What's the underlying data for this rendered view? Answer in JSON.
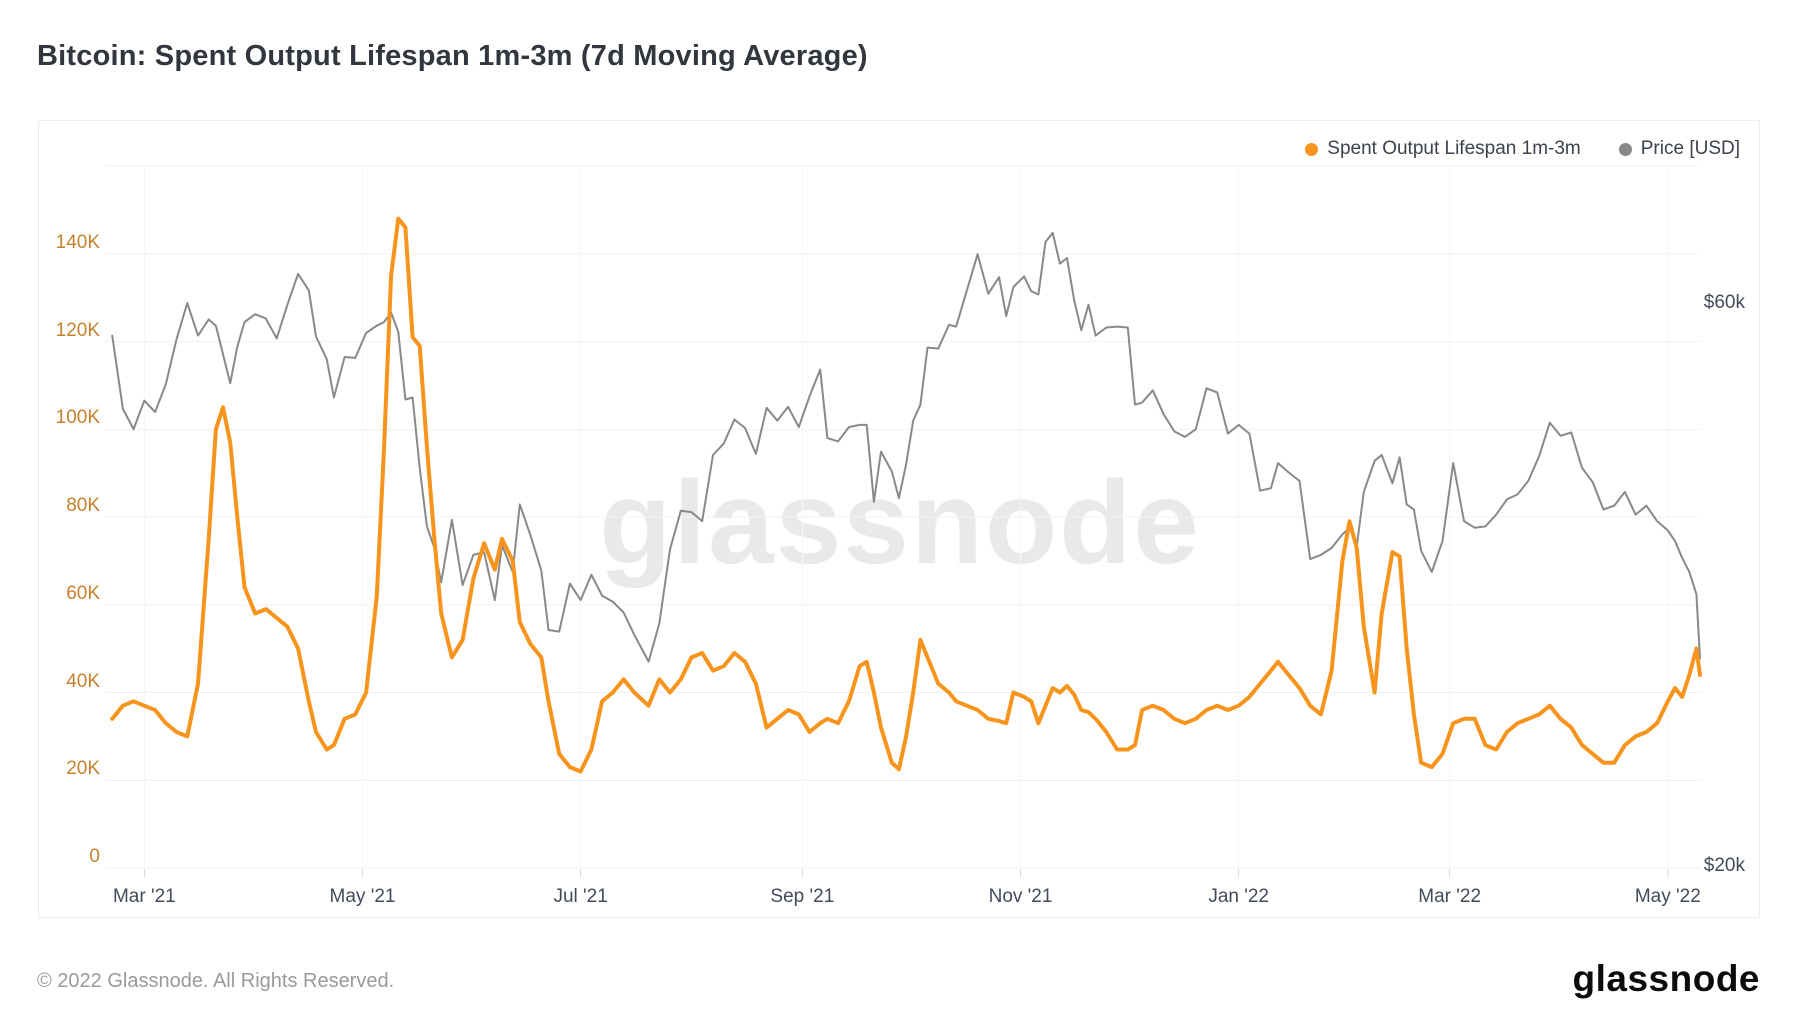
{
  "page": {
    "title": "Bitcoin: Spent Output Lifespan 1m-3m (7d Moving Average)",
    "watermark": "glassnode",
    "footer_copyright": "© 2022 Glassnode. All Rights Reserved.",
    "footer_logo": "glassnode"
  },
  "colors": {
    "series_spent_output": "#f7941d",
    "series_price": "#898989",
    "left_axis_text": "#c5812d",
    "right_axis_text": "#434b57",
    "x_axis_text": "#434b57",
    "gridline": "#f2f2f2",
    "vertical_gridline": "#f7f7f7",
    "tick_mark": "#d9d9d9",
    "watermark": "#e9e9e9",
    "card_border": "#ececec",
    "title_text": "#32373d",
    "footer_text": "#9a9a9a",
    "logo_text": "#0c0c0c"
  },
  "legend": {
    "items": [
      {
        "label": "Spent Output Lifespan 1m-3m",
        "color": "#f7941d"
      },
      {
        "label": "Price [USD]",
        "color": "#898989"
      }
    ]
  },
  "chart_data": {
    "type": "line",
    "title": "Bitcoin: Spent Output Lifespan 1m-3m (7d Moving Average)",
    "x_domain": [
      "2021-02-18",
      "2022-05-10"
    ],
    "left_axis": {
      "name": "Spent Output Lifespan 1m-3m",
      "unit": "thousands",
      "scale": "linear",
      "ylim": [
        0,
        160
      ],
      "ticks": [
        {
          "value": 0,
          "label": "0"
        },
        {
          "value": 20,
          "label": "20K"
        },
        {
          "value": 40,
          "label": "40K"
        },
        {
          "value": 60,
          "label": "60K"
        },
        {
          "value": 80,
          "label": "80K"
        },
        {
          "value": 100,
          "label": "100K"
        },
        {
          "value": 120,
          "label": "120K"
        },
        {
          "value": 140,
          "label": "140K"
        }
      ]
    },
    "right_axis": {
      "name": "Price [USD]",
      "unit": "thousand USD",
      "scale": "log",
      "ticks": [
        {
          "value": 60,
          "label": "$60k"
        },
        {
          "value": 20,
          "label": "$20k"
        }
      ]
    },
    "x_ticks": [
      {
        "date": "2021-03-01",
        "label": "Mar '21"
      },
      {
        "date": "2021-05-01",
        "label": "May '21"
      },
      {
        "date": "2021-07-01",
        "label": "Jul '21"
      },
      {
        "date": "2021-09-01",
        "label": "Sep '21"
      },
      {
        "date": "2021-11-01",
        "label": "Nov '21"
      },
      {
        "date": "2022-01-01",
        "label": "Jan '22"
      },
      {
        "date": "2022-03-01",
        "label": "Mar '22"
      },
      {
        "date": "2022-05-01",
        "label": "May '22"
      }
    ],
    "columns": [
      "date",
      "spent_output_lifespan_1m3m_thousands",
      "price_usd_thousands"
    ],
    "rows": [
      [
        "2021-02-20",
        34,
        56.3
      ],
      [
        "2021-02-23",
        37,
        48.8
      ],
      [
        "2021-02-26",
        38,
        46.9
      ],
      [
        "2021-03-01",
        37,
        49.6
      ],
      [
        "2021-03-04",
        36,
        48.5
      ],
      [
        "2021-03-07",
        33,
        51.2
      ],
      [
        "2021-03-10",
        31,
        55.9
      ],
      [
        "2021-03-13",
        30,
        60.0
      ],
      [
        "2021-03-16",
        42,
        56.3
      ],
      [
        "2021-03-19",
        75,
        58.1
      ],
      [
        "2021-03-21",
        100,
        57.4
      ],
      [
        "2021-03-23",
        105,
        54.3
      ],
      [
        "2021-03-25",
        97,
        51.3
      ],
      [
        "2021-03-27",
        80,
        55.1
      ],
      [
        "2021-03-29",
        64,
        57.8
      ],
      [
        "2021-04-01",
        58,
        58.7
      ],
      [
        "2021-04-04",
        59,
        58.2
      ],
      [
        "2021-04-07",
        57,
        56.0
      ],
      [
        "2021-04-10",
        55,
        59.8
      ],
      [
        "2021-04-13",
        50,
        63.5
      ],
      [
        "2021-04-16",
        38,
        61.5
      ],
      [
        "2021-04-18",
        31,
        56.2
      ],
      [
        "2021-04-21",
        27,
        53.8
      ],
      [
        "2021-04-23",
        28,
        49.9
      ],
      [
        "2021-04-26",
        34,
        54.0
      ],
      [
        "2021-04-29",
        35,
        53.9
      ],
      [
        "2021-05-02",
        40,
        56.6
      ],
      [
        "2021-05-05",
        62,
        57.4
      ],
      [
        "2021-05-07",
        95,
        57.8
      ],
      [
        "2021-05-09",
        135,
        58.9
      ],
      [
        "2021-05-11",
        148,
        56.7
      ],
      [
        "2021-05-13",
        146,
        49.7
      ],
      [
        "2021-05-15",
        121,
        49.9
      ],
      [
        "2021-05-17",
        119,
        43.5
      ],
      [
        "2021-05-19",
        96,
        38.8
      ],
      [
        "2021-05-21",
        76,
        37.3
      ],
      [
        "2021-05-23",
        58,
        34.8
      ],
      [
        "2021-05-26",
        48,
        39.3
      ],
      [
        "2021-05-29",
        52,
        34.6
      ],
      [
        "2021-06-01",
        66,
        36.7
      ],
      [
        "2021-06-04",
        74,
        36.9
      ],
      [
        "2021-06-07",
        68,
        33.6
      ],
      [
        "2021-06-09",
        75,
        37.4
      ],
      [
        "2021-06-12",
        70,
        35.5
      ],
      [
        "2021-06-14",
        56,
        40.5
      ],
      [
        "2021-06-17",
        51,
        38.1
      ],
      [
        "2021-06-20",
        48,
        35.6
      ],
      [
        "2021-06-22",
        38,
        31.7
      ],
      [
        "2021-06-25",
        26,
        31.6
      ],
      [
        "2021-06-28",
        23,
        34.7
      ],
      [
        "2021-07-01",
        22,
        33.6
      ],
      [
        "2021-07-04",
        27,
        35.3
      ],
      [
        "2021-07-07",
        38,
        33.9
      ],
      [
        "2021-07-10",
        40,
        33.5
      ],
      [
        "2021-07-13",
        43,
        32.8
      ],
      [
        "2021-07-16",
        40,
        31.4
      ],
      [
        "2021-07-20",
        37,
        29.8
      ],
      [
        "2021-07-23",
        43,
        32.1
      ],
      [
        "2021-07-26",
        40,
        37.1
      ],
      [
        "2021-07-29",
        43,
        40.0
      ],
      [
        "2021-08-01",
        48,
        39.9
      ],
      [
        "2021-08-04",
        49,
        39.2
      ],
      [
        "2021-08-07",
        45,
        44.6
      ],
      [
        "2021-08-10",
        46,
        45.6
      ],
      [
        "2021-08-13",
        49,
        47.8
      ],
      [
        "2021-08-16",
        47,
        47.0
      ],
      [
        "2021-08-19",
        42,
        44.7
      ],
      [
        "2021-08-22",
        32,
        48.9
      ],
      [
        "2021-08-25",
        34,
        47.7
      ],
      [
        "2021-08-28",
        36,
        49.0
      ],
      [
        "2021-08-31",
        35,
        47.1
      ],
      [
        "2021-09-03",
        31,
        50.0
      ],
      [
        "2021-09-06",
        33,
        52.7
      ],
      [
        "2021-09-08",
        34,
        46.1
      ],
      [
        "2021-09-11",
        33,
        45.8
      ],
      [
        "2021-09-14",
        38,
        47.1
      ],
      [
        "2021-09-17",
        46,
        47.3
      ],
      [
        "2021-09-19",
        47,
        47.3
      ],
      [
        "2021-09-21",
        40,
        40.7
      ],
      [
        "2021-09-23",
        32,
        44.9
      ],
      [
        "2021-09-26",
        24,
        43.2
      ],
      [
        "2021-09-28",
        22.5,
        41.0
      ],
      [
        "2021-09-30",
        30,
        43.8
      ],
      [
        "2021-10-02",
        40,
        47.7
      ],
      [
        "2021-10-04",
        52,
        49.2
      ],
      [
        "2021-10-06",
        48,
        55.0
      ],
      [
        "2021-10-09",
        42,
        54.9
      ],
      [
        "2021-10-12",
        40,
        57.5
      ],
      [
        "2021-10-14",
        38,
        57.3
      ],
      [
        "2021-10-17",
        37,
        61.5
      ],
      [
        "2021-10-20",
        36,
        66.0
      ],
      [
        "2021-10-23",
        34,
        61.1
      ],
      [
        "2021-10-26",
        33.5,
        63.1
      ],
      [
        "2021-10-28",
        33,
        58.5
      ],
      [
        "2021-10-30",
        40,
        61.9
      ],
      [
        "2021-11-02",
        39,
        63.2
      ],
      [
        "2021-11-04",
        38,
        61.4
      ],
      [
        "2021-11-06",
        33,
        61.0
      ],
      [
        "2021-11-08",
        37,
        67.6
      ],
      [
        "2021-11-10",
        41,
        68.8
      ],
      [
        "2021-11-12",
        40,
        64.8
      ],
      [
        "2021-11-14",
        41.5,
        65.5
      ],
      [
        "2021-11-16",
        39.5,
        60.3
      ],
      [
        "2021-11-18",
        36,
        56.9
      ],
      [
        "2021-11-20",
        35.5,
        59.8
      ],
      [
        "2021-11-22",
        34,
        56.3
      ],
      [
        "2021-11-25",
        31,
        57.2
      ],
      [
        "2021-11-28",
        27,
        57.3
      ],
      [
        "2021-12-01",
        27,
        57.2
      ],
      [
        "2021-12-03",
        28,
        49.2
      ],
      [
        "2021-12-05",
        36,
        49.4
      ],
      [
        "2021-12-08",
        37,
        50.6
      ],
      [
        "2021-12-11",
        36,
        48.3
      ],
      [
        "2021-12-14",
        34,
        46.7
      ],
      [
        "2021-12-17",
        33,
        46.2
      ],
      [
        "2021-12-20",
        34,
        46.9
      ],
      [
        "2021-12-23",
        36,
        50.8
      ],
      [
        "2021-12-26",
        37,
        50.4
      ],
      [
        "2021-12-29",
        36,
        46.5
      ],
      [
        "2022-01-01",
        37,
        47.3
      ],
      [
        "2022-01-04",
        39,
        46.5
      ],
      [
        "2022-01-07",
        42,
        41.6
      ],
      [
        "2022-01-10",
        45,
        41.8
      ],
      [
        "2022-01-12",
        47,
        43.9
      ],
      [
        "2022-01-15",
        44,
        43.1
      ],
      [
        "2022-01-18",
        41,
        42.4
      ],
      [
        "2022-01-21",
        37,
        36.4
      ],
      [
        "2022-01-24",
        35,
        36.7
      ],
      [
        "2022-01-27",
        45,
        37.2
      ],
      [
        "2022-01-30",
        70,
        38.2
      ],
      [
        "2022-02-01",
        79,
        38.7
      ],
      [
        "2022-02-03",
        73,
        37.3
      ],
      [
        "2022-02-05",
        55,
        41.5
      ],
      [
        "2022-02-08",
        40,
        44.1
      ],
      [
        "2022-02-10",
        58,
        44.6
      ],
      [
        "2022-02-13",
        72,
        42.2
      ],
      [
        "2022-02-15",
        71,
        44.4
      ],
      [
        "2022-02-17",
        50,
        40.5
      ],
      [
        "2022-02-19",
        35,
        40.1
      ],
      [
        "2022-02-21",
        24,
        37.0
      ],
      [
        "2022-02-24",
        23,
        35.5
      ],
      [
        "2022-02-27",
        26,
        37.7
      ],
      [
        "2022-03-02",
        33,
        43.9
      ],
      [
        "2022-03-05",
        34,
        39.2
      ],
      [
        "2022-03-08",
        34,
        38.7
      ],
      [
        "2022-03-11",
        28,
        38.8
      ],
      [
        "2022-03-14",
        27,
        39.7
      ],
      [
        "2022-03-17",
        31,
        40.9
      ],
      [
        "2022-03-20",
        33,
        41.3
      ],
      [
        "2022-03-23",
        34,
        42.4
      ],
      [
        "2022-03-26",
        35,
        44.5
      ],
      [
        "2022-03-29",
        37,
        47.5
      ],
      [
        "2022-04-01",
        34,
        46.3
      ],
      [
        "2022-04-04",
        32,
        46.6
      ],
      [
        "2022-04-07",
        28,
        43.5
      ],
      [
        "2022-04-10",
        26,
        42.3
      ],
      [
        "2022-04-13",
        24,
        40.1
      ],
      [
        "2022-04-16",
        24,
        40.4
      ],
      [
        "2022-04-19",
        28,
        41.5
      ],
      [
        "2022-04-22",
        30,
        39.7
      ],
      [
        "2022-04-25",
        31,
        40.4
      ],
      [
        "2022-04-28",
        33,
        39.2
      ],
      [
        "2022-05-01",
        38,
        38.5
      ],
      [
        "2022-05-03",
        41,
        37.7
      ],
      [
        "2022-05-05",
        39,
        36.5
      ],
      [
        "2022-05-07",
        44,
        35.5
      ],
      [
        "2022-05-09",
        50,
        34.0
      ],
      [
        "2022-05-10",
        44,
        30.0
      ]
    ],
    "series": [
      {
        "name": "Spent Output Lifespan 1m-3m",
        "axis": "left",
        "color": "#f7941d",
        "value_column": 1
      },
      {
        "name": "Price [USD]",
        "axis": "right",
        "color": "#898989",
        "value_column": 2
      }
    ],
    "legend_position": "top-right",
    "grid": true
  }
}
